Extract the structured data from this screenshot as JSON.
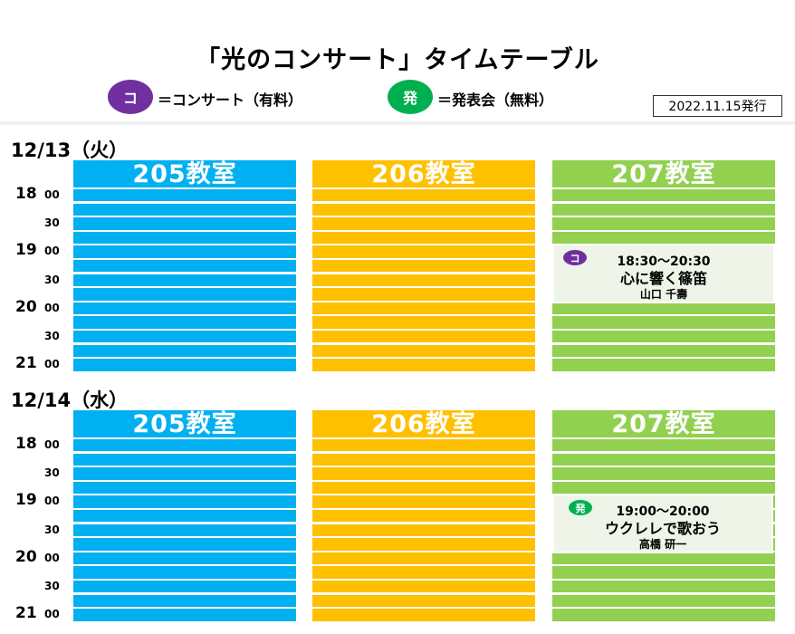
{
  "title": "「光のコンサート」タイムテーブル",
  "legend": [
    {
      "badge": "コ",
      "text": "＝コンサート（有料）",
      "color": "#7030a0"
    },
    {
      "badge": "発",
      "text": "＝発表会（無料）",
      "color": "#00b050"
    }
  ],
  "issued": "2022.11.15発行",
  "time_labels": {
    "hours": [
      "18",
      "19",
      "20",
      "21"
    ],
    "minutes": [
      "00",
      "30",
      "00",
      "30",
      "00",
      "30",
      "00"
    ]
  },
  "colors": {
    "room205": "#00b0f0",
    "room206": "#ffc000",
    "room207": "#92d050"
  },
  "days": [
    {
      "label": "12/13（火）",
      "rooms": [
        "205教室",
        "206教室",
        "207教室"
      ],
      "event": {
        "badge": "コ",
        "time": "18:30～20:30",
        "title": "心に響く篠笛",
        "performer": "山口 千壽"
      }
    },
    {
      "label": "12/14（水）",
      "rooms": [
        "205教室",
        "206教室",
        "207教室"
      ],
      "event": {
        "badge": "発",
        "time": "19:00～20:00",
        "title": "ウクレレで歌おう",
        "performer": "高橋 研一"
      }
    }
  ]
}
